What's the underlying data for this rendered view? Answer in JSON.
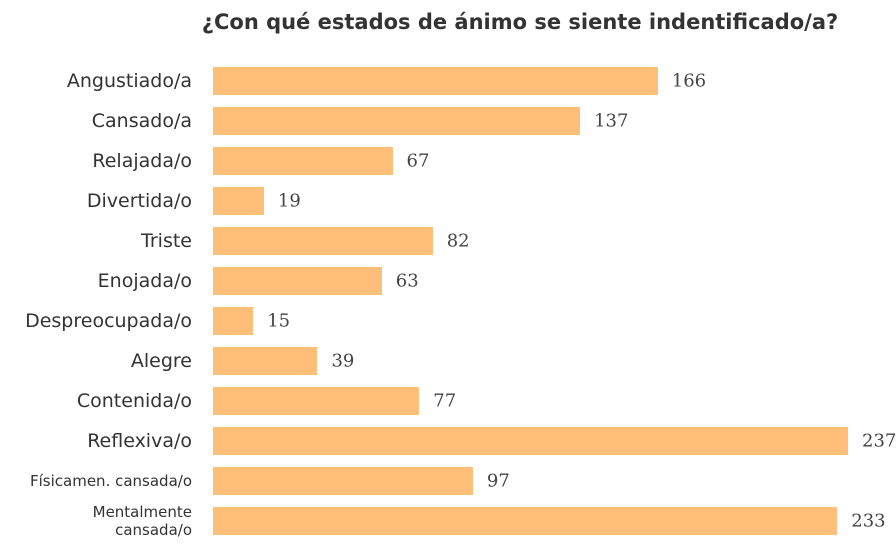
{
  "chart_data": {
    "type": "bar",
    "orientation": "horizontal",
    "title": "¿Con qué estados de ánimo se siente indentificado/a?",
    "categories": [
      "Angustiado/a",
      "Cansado/a",
      "Relajada/o",
      "Divertida/o",
      "Triste",
      "Enojada/o",
      "Despreocupada/o",
      "Alegre",
      "Contenida/o",
      "Reflexiva/o",
      "Físicamen. cansada/o",
      "Mentalmente\ncansada/o"
    ],
    "values": [
      166,
      137,
      67,
      19,
      82,
      63,
      15,
      39,
      77,
      237,
      97,
      233
    ],
    "color": "#ffbf78"
  }
}
